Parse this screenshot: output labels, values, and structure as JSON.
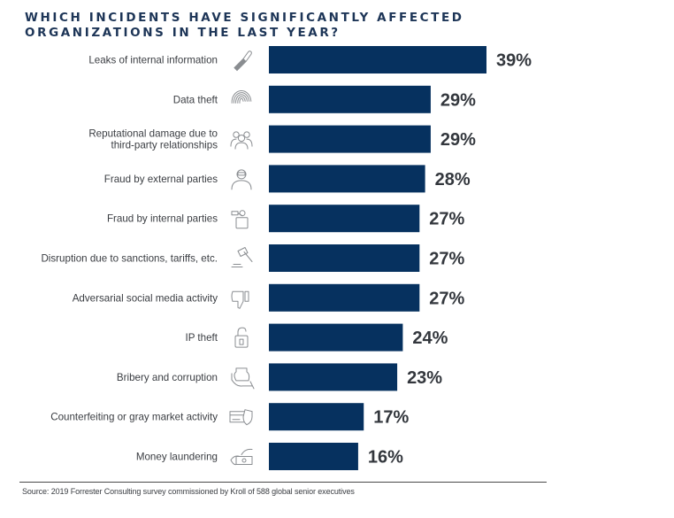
{
  "chart_data": {
    "type": "bar",
    "orientation": "horizontal",
    "title": "WHICH INCIDENTS HAVE SIGNIFICANTLY AFFECTED ORGANIZATIONS IN THE LAST YEAR?",
    "title_lines": [
      "WHICH INCIDENTS HAVE SIGNIFICANTLY AFFECTED",
      "ORGANIZATIONS IN THE LAST YEAR?"
    ],
    "xlabel": "",
    "ylabel": "",
    "unit": "%",
    "xlim": [
      0,
      39
    ],
    "grid": false,
    "legend": "none",
    "bar_color": "#06315f",
    "categories": [
      "Leaks of internal information",
      "Data theft",
      "Reputational damage due to third-party relationships",
      "Fraud by external parties",
      "Fraud by internal parties",
      "Disruption due to sanctions, tariffs, etc.",
      "Adversarial social media activity",
      "IP theft",
      "Bribery and corruption",
      "Counterfeiting or gray market activity",
      "Money laundering"
    ],
    "category_lines": [
      [
        "Leaks of internal information"
      ],
      [
        "Data theft"
      ],
      [
        "Reputational damage due to",
        "third-party relationships"
      ],
      [
        "Fraud by external parties"
      ],
      [
        "Fraud by internal parties"
      ],
      [
        "Disruption due to sanctions, tariffs, etc."
      ],
      [
        "Adversarial social media activity"
      ],
      [
        "IP theft"
      ],
      [
        "Bribery and corruption"
      ],
      [
        "Counterfeiting or gray market activity"
      ],
      [
        "Money laundering"
      ]
    ],
    "values": [
      39,
      29,
      29,
      28,
      27,
      27,
      27,
      24,
      23,
      17,
      16
    ],
    "value_labels": [
      "39%",
      "29%",
      "29%",
      "28%",
      "27%",
      "27%",
      "27%",
      "24%",
      "23%",
      "17%",
      "16%"
    ],
    "icons": [
      "usb-drive-icon",
      "fingerprint-icon",
      "people-group-icon",
      "masked-person-icon",
      "briefcase-hand-icon",
      "gavel-icon",
      "thumbs-down-icon",
      "padlock-icon",
      "money-bag-hand-icon",
      "credit-card-shield-icon",
      "money-hand-icon"
    ]
  },
  "footer": {
    "source": "Source: 2019 Forrester Consulting survey commissioned by Kroll of 588 global senior executives"
  }
}
